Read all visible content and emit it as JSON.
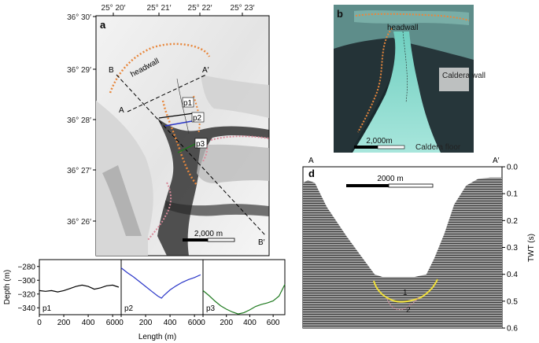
{
  "panel_a": {
    "letter": "a",
    "top_ticks": [
      "25° 20′",
      "25° 21′",
      "25° 22′",
      "25° 23′"
    ],
    "left_ticks": [
      "36° 30′",
      "36° 29′",
      "36° 28′",
      "36° 27′",
      "36° 26′"
    ],
    "headwall_label": "headwall",
    "profile_labels": [
      "p1",
      "p2",
      "p3"
    ],
    "line_labels": {
      "B": "B",
      "A": "A",
      "A_prime": "A′",
      "B_prime": "B′"
    },
    "scale_label": "2,000 m"
  },
  "panel_b": {
    "letter": "b",
    "headwall_label": "headwall",
    "caldera_wall_label": "Caldera wall",
    "caldera_floor_label": "Caldera floor",
    "scale_label": "2,000m"
  },
  "panel_d": {
    "letter": "d",
    "left_end": "A",
    "right_end": "A′",
    "scale_label": "2000 m",
    "unit_labels": [
      "1",
      "2"
    ],
    "axis_title": "TWT (s)"
  },
  "chart_data": [
    {
      "type": "line",
      "panel": "c",
      "ylabel": "Depth (m)",
      "xlabel": "Length (m)",
      "ylim": [
        -350,
        -270
      ],
      "yticks": [
        -280,
        -300,
        -320,
        -340
      ],
      "subplots": [
        {
          "name": "p1",
          "color": "#000000",
          "xlim": [
            0,
            670
          ],
          "xticks": [
            0,
            200,
            400,
            600
          ],
          "x": [
            0,
            50,
            100,
            150,
            200,
            250,
            300,
            350,
            400,
            450,
            500,
            550,
            600,
            650
          ],
          "y": [
            -315,
            -316,
            -315,
            -317,
            -315,
            -312,
            -309,
            -307,
            -309,
            -313,
            -311,
            -308,
            -307,
            -310
          ]
        },
        {
          "name": "p2",
          "color": "#2a36c8",
          "xlim": [
            0,
            670
          ],
          "xticks": [
            0,
            200,
            400,
            600
          ],
          "x": [
            0,
            50,
            100,
            150,
            200,
            250,
            300,
            330,
            350,
            400,
            450,
            500,
            550,
            600,
            650
          ],
          "y": [
            -282,
            -289,
            -295,
            -302,
            -309,
            -316,
            -323,
            -326,
            -322,
            -314,
            -308,
            -303,
            -299,
            -296,
            -292
          ]
        },
        {
          "name": "p3",
          "color": "#1f7a1f",
          "xlim": [
            0,
            700
          ],
          "xticks": [
            0,
            200,
            400,
            600
          ],
          "x": [
            0,
            50,
            100,
            150,
            200,
            250,
            300,
            350,
            400,
            450,
            500,
            550,
            600,
            650,
            700
          ],
          "y": [
            -315,
            -322,
            -330,
            -337,
            -342,
            -346,
            -349,
            -347,
            -343,
            -338,
            -335,
            -333,
            -330,
            -323,
            -306
          ]
        }
      ]
    },
    {
      "type": "line",
      "panel": "d-axis",
      "ylabel": "TWT (s)",
      "ylim": [
        0.0,
        0.6
      ],
      "yticks": [
        "0.0",
        "0.1",
        "0.2",
        "0.3",
        "0.4",
        "0.5",
        "0.6"
      ],
      "seafloor_twt": {
        "x_fraction": [
          0,
          0.025,
          0.06,
          0.12,
          0.22,
          0.3,
          0.36,
          0.4,
          0.48,
          0.56,
          0.62,
          0.66,
          0.71,
          0.76,
          0.82,
          0.88,
          0.94,
          1.0
        ],
        "y": [
          0.06,
          0.05,
          0.06,
          0.15,
          0.26,
          0.34,
          0.4,
          0.41,
          0.41,
          0.41,
          0.4,
          0.34,
          0.25,
          0.14,
          0.07,
          0.045,
          0.04,
          0.04
        ]
      }
    }
  ],
  "colors": {
    "orange": "#e8873c",
    "pink": "#d88a9a",
    "blue": "#2a36c8",
    "green": "#1f7a1f",
    "yellow": "#f2e13a",
    "teal": "#7fd6c4"
  }
}
